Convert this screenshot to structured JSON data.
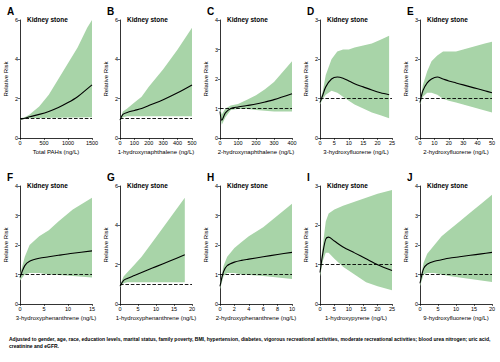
{
  "chart_data": [
    {
      "type": "line",
      "panel": "A",
      "title": "Kidney stone",
      "xlabel": "Total PAHs (ng/L)",
      "ylabel": "Relative Risk",
      "xlim": [
        0,
        1500
      ],
      "xticks": [
        0,
        500,
        1000,
        1500
      ],
      "ylim": [
        0,
        6
      ],
      "yticks": [
        0,
        2,
        4,
        6
      ],
      "grid": false,
      "reference_line": 1,
      "x": [
        0,
        100,
        200,
        400,
        600,
        800,
        1000,
        1200,
        1400,
        1500
      ],
      "series": [
        {
          "type": "band",
          "color": "#a8d4a8",
          "lower": [
            0.9,
            0.98,
            1.0,
            1.02,
            1.03,
            1.03,
            1.04,
            1.04,
            1.05,
            1.05
          ],
          "upper": [
            1.0,
            1.05,
            1.2,
            1.6,
            2.2,
            3.0,
            3.8,
            4.6,
            5.6,
            6.0
          ]
        },
        {
          "type": "line",
          "color": "#000000",
          "values": [
            0.95,
            1.0,
            1.08,
            1.2,
            1.35,
            1.55,
            1.8,
            2.1,
            2.5,
            2.7
          ]
        }
      ]
    },
    {
      "type": "line",
      "panel": "B",
      "title": "Kidney stone",
      "xlabel": "1-hydroxynaphthalene (ng/L)",
      "ylabel": "Relative Risk",
      "xlim": [
        0,
        500
      ],
      "xticks": [
        0,
        100,
        200,
        300,
        400,
        500
      ],
      "ylim": [
        0,
        6
      ],
      "yticks": [
        0,
        2,
        4,
        6
      ],
      "grid": false,
      "reference_line": 1,
      "x": [
        0,
        20,
        50,
        100,
        150,
        200,
        300,
        400,
        500
      ],
      "series": [
        {
          "type": "band",
          "color": "#a8d4a8",
          "lower": [
            0.85,
            1.05,
            1.1,
            1.1,
            1.1,
            1.1,
            1.1,
            1.1,
            1.1
          ],
          "upper": [
            0.95,
            1.35,
            1.5,
            1.8,
            2.1,
            2.6,
            3.5,
            4.5,
            5.6
          ]
        },
        {
          "type": "line",
          "color": "#000000",
          "values": [
            0.9,
            1.2,
            1.3,
            1.4,
            1.5,
            1.65,
            1.95,
            2.3,
            2.7
          ]
        }
      ]
    },
    {
      "type": "line",
      "panel": "C",
      "title": "Kidney stone",
      "xlabel": "2-hydroxynaphthalene (ng/L)",
      "ylabel": "Relative Risk",
      "xlim": [
        0,
        400
      ],
      "xticks": [
        0,
        100,
        200,
        300,
        400
      ],
      "ylim": [
        0,
        4
      ],
      "yticks": [
        0,
        1,
        2,
        3,
        4
      ],
      "grid": false,
      "reference_line": 1,
      "x": [
        0,
        10,
        30,
        60,
        100,
        150,
        200,
        250,
        300,
        400
      ],
      "series": [
        {
          "type": "band",
          "color": "#a8d4a8",
          "lower": [
            0.8,
            0.45,
            0.7,
            0.95,
            0.98,
            0.98,
            0.95,
            0.92,
            0.9,
            0.9
          ],
          "upper": [
            1.0,
            0.8,
            1.0,
            1.1,
            1.15,
            1.3,
            1.45,
            1.65,
            1.9,
            2.6
          ]
        },
        {
          "type": "line",
          "color": "#000000",
          "values": [
            0.9,
            0.6,
            0.85,
            1.0,
            1.05,
            1.1,
            1.15,
            1.22,
            1.3,
            1.5
          ]
        }
      ]
    },
    {
      "type": "line",
      "panel": "D",
      "title": "Kidney stone",
      "xlabel": "3-hydroxyfluorene (ng/L)",
      "ylabel": "Relative Risk",
      "xlim": [
        0,
        25
      ],
      "xticks": [
        0,
        5,
        10,
        15,
        20,
        25
      ],
      "ylim": [
        0,
        3
      ],
      "yticks": [
        0,
        1,
        2,
        3
      ],
      "grid": false,
      "reference_line": 1,
      "x": [
        0,
        1,
        2,
        4,
        6,
        8,
        10,
        12,
        15,
        18,
        21,
        24
      ],
      "series": [
        {
          "type": "band",
          "color": "#a8d4a8",
          "lower": [
            0.85,
            1.0,
            1.1,
            1.2,
            1.15,
            1.05,
            0.95,
            0.85,
            0.75,
            0.65,
            0.58,
            0.5
          ],
          "upper": [
            0.95,
            1.2,
            1.6,
            2.0,
            2.2,
            2.25,
            2.25,
            2.3,
            2.35,
            2.4,
            2.5,
            2.6
          ]
        },
        {
          "type": "line",
          "color": "#000000",
          "values": [
            0.9,
            1.1,
            1.3,
            1.5,
            1.55,
            1.52,
            1.45,
            1.38,
            1.3,
            1.22,
            1.15,
            1.1
          ]
        }
      ]
    },
    {
      "type": "line",
      "panel": "E",
      "title": "Kidney stone",
      "xlabel": "2-hydroxyfluorene (ng/L)",
      "ylabel": "Relative Risk",
      "xlim": [
        0,
        50
      ],
      "xticks": [
        0,
        10,
        20,
        30,
        40,
        50
      ],
      "ylim": [
        0,
        3
      ],
      "yticks": [
        0,
        1,
        2,
        3
      ],
      "grid": false,
      "reference_line": 1,
      "x": [
        0,
        2,
        5,
        8,
        12,
        16,
        20,
        25,
        30,
        35,
        40,
        45,
        50
      ],
      "series": [
        {
          "type": "band",
          "color": "#a8d4a8",
          "lower": [
            0.85,
            1.05,
            1.15,
            1.15,
            1.1,
            1.0,
            0.95,
            0.9,
            0.85,
            0.8,
            0.75,
            0.7,
            0.65
          ],
          "upper": [
            0.95,
            1.35,
            1.7,
            1.95,
            2.1,
            2.2,
            2.2,
            2.2,
            2.25,
            2.3,
            2.35,
            2.4,
            2.45
          ]
        },
        {
          "type": "line",
          "color": "#000000",
          "values": [
            0.9,
            1.2,
            1.4,
            1.5,
            1.55,
            1.5,
            1.45,
            1.4,
            1.35,
            1.3,
            1.25,
            1.2,
            1.15
          ]
        }
      ]
    },
    {
      "type": "line",
      "panel": "F",
      "title": "Kidney stone",
      "xlabel": "3-hydroxyphenanthrene (ng/L)",
      "ylabel": "Relative Risk",
      "xlim": [
        0,
        15
      ],
      "xticks": [
        0,
        5,
        10,
        15
      ],
      "ylim": [
        0,
        4
      ],
      "yticks": [
        0,
        1,
        2,
        3,
        4
      ],
      "grid": false,
      "reference_line": 1,
      "x": [
        0,
        1,
        2,
        4,
        6,
        8,
        11,
        15
      ],
      "series": [
        {
          "type": "band",
          "color": "#a8d4a8",
          "lower": [
            0.8,
            1.0,
            1.05,
            1.05,
            1.0,
            0.98,
            0.95,
            0.9
          ],
          "upper": [
            1.0,
            1.6,
            2.0,
            2.3,
            2.5,
            2.8,
            3.2,
            3.6
          ]
        },
        {
          "type": "line",
          "color": "#000000",
          "values": [
            0.9,
            1.3,
            1.45,
            1.55,
            1.6,
            1.65,
            1.72,
            1.8
          ]
        }
      ]
    },
    {
      "type": "line",
      "panel": "G",
      "title": "Kidney stone",
      "xlabel": "1-hydroxyphenanthrene (ng/L)",
      "ylabel": "Relative Risk",
      "xlim": [
        0,
        20
      ],
      "xticks": [
        0,
        5,
        10,
        15,
        20
      ],
      "ylim": [
        0,
        6
      ],
      "yticks": [
        0,
        2,
        4,
        6
      ],
      "grid": false,
      "reference_line": 1,
      "x": [
        0,
        1,
        2,
        4,
        6,
        8,
        10,
        14,
        18
      ],
      "series": [
        {
          "type": "band",
          "color": "#a8d4a8",
          "lower": [
            0.85,
            1.05,
            1.1,
            1.1,
            1.1,
            1.1,
            1.1,
            1.1,
            1.1
          ],
          "upper": [
            0.95,
            1.4,
            1.6,
            2.0,
            2.4,
            2.9,
            3.4,
            4.4,
            5.4
          ]
        },
        {
          "type": "line",
          "color": "#000000",
          "values": [
            0.9,
            1.2,
            1.3,
            1.45,
            1.6,
            1.75,
            1.9,
            2.2,
            2.5
          ]
        }
      ]
    },
    {
      "type": "line",
      "panel": "H",
      "title": "Kidney stone",
      "xlabel": "2-hydroxyphenanthrene (ng/L)",
      "ylabel": "Relative Risk",
      "xlim": [
        0,
        10
      ],
      "xticks": [
        0,
        2,
        4,
        6,
        8,
        10
      ],
      "ylim": [
        0,
        4
      ],
      "yticks": [
        0,
        1,
        2,
        3,
        4
      ],
      "grid": false,
      "reference_line": 1,
      "x": [
        0,
        0.5,
        1,
        2,
        3,
        4,
        6,
        8,
        10
      ],
      "series": [
        {
          "type": "band",
          "color": "#a8d4a8",
          "lower": [
            0.5,
            0.95,
            1.05,
            1.05,
            1.0,
            0.98,
            0.95,
            0.9,
            0.85
          ],
          "upper": [
            0.7,
            1.3,
            1.6,
            1.9,
            2.1,
            2.3,
            2.6,
            3.0,
            3.4
          ]
        },
        {
          "type": "line",
          "color": "#000000",
          "values": [
            0.6,
            1.1,
            1.3,
            1.42,
            1.48,
            1.52,
            1.6,
            1.68,
            1.75
          ]
        }
      ]
    },
    {
      "type": "line",
      "panel": "I",
      "title": "Kidney stone",
      "xlabel": "1-hydroxypyrene (ng/L)",
      "ylabel": "Relative Risk",
      "xlim": [
        0,
        25
      ],
      "xticks": [
        0,
        5,
        10,
        15,
        20,
        25
      ],
      "ylim": [
        0,
        3
      ],
      "yticks": [
        0,
        1,
        2,
        3
      ],
      "grid": false,
      "reference_line": 1,
      "x": [
        0,
        1,
        2,
        3,
        5,
        8,
        12,
        16,
        20,
        25
      ],
      "series": [
        {
          "type": "band",
          "color": "#a8d4a8",
          "lower": [
            0.7,
            1.1,
            1.3,
            1.3,
            1.15,
            0.95,
            0.75,
            0.55,
            0.45,
            0.35
          ],
          "upper": [
            0.9,
            1.5,
            2.1,
            2.3,
            2.4,
            2.5,
            2.6,
            2.7,
            2.8,
            2.9
          ]
        },
        {
          "type": "line",
          "color": "#000000",
          "values": [
            0.8,
            1.3,
            1.65,
            1.7,
            1.6,
            1.45,
            1.3,
            1.15,
            1.0,
            0.85
          ]
        }
      ]
    },
    {
      "type": "line",
      "panel": "J",
      "title": "Kidney stone",
      "xlabel": "9-hydroxyfluorene (ng/L)",
      "ylabel": "Relative Risk",
      "xlim": [
        0,
        20
      ],
      "xticks": [
        0,
        5,
        10,
        15,
        20
      ],
      "ylim": [
        0,
        4
      ],
      "yticks": [
        0,
        1,
        2,
        3,
        4
      ],
      "grid": false,
      "reference_line": 1,
      "x": [
        0,
        1,
        2,
        4,
        6,
        8,
        11,
        14,
        17,
        20
      ],
      "series": [
        {
          "type": "band",
          "color": "#a8d4a8",
          "lower": [
            0.6,
            1.0,
            1.05,
            1.05,
            1.0,
            0.95,
            0.9,
            0.85,
            0.8,
            0.75
          ],
          "upper": [
            0.8,
            1.4,
            1.7,
            2.0,
            2.3,
            2.5,
            2.8,
            3.1,
            3.4,
            3.7
          ]
        },
        {
          "type": "line",
          "color": "#000000",
          "values": [
            0.7,
            1.2,
            1.35,
            1.45,
            1.5,
            1.55,
            1.6,
            1.65,
            1.7,
            1.75
          ]
        }
      ]
    }
  ],
  "caption": "Adjusted to gender, age, race, education levels, marital status, family poverty, BMI, hypertension, diabetes, vigorous recreational activities, moderate recreational activities; blood urea nitrogen; uric acid, creatinine and eGFR."
}
